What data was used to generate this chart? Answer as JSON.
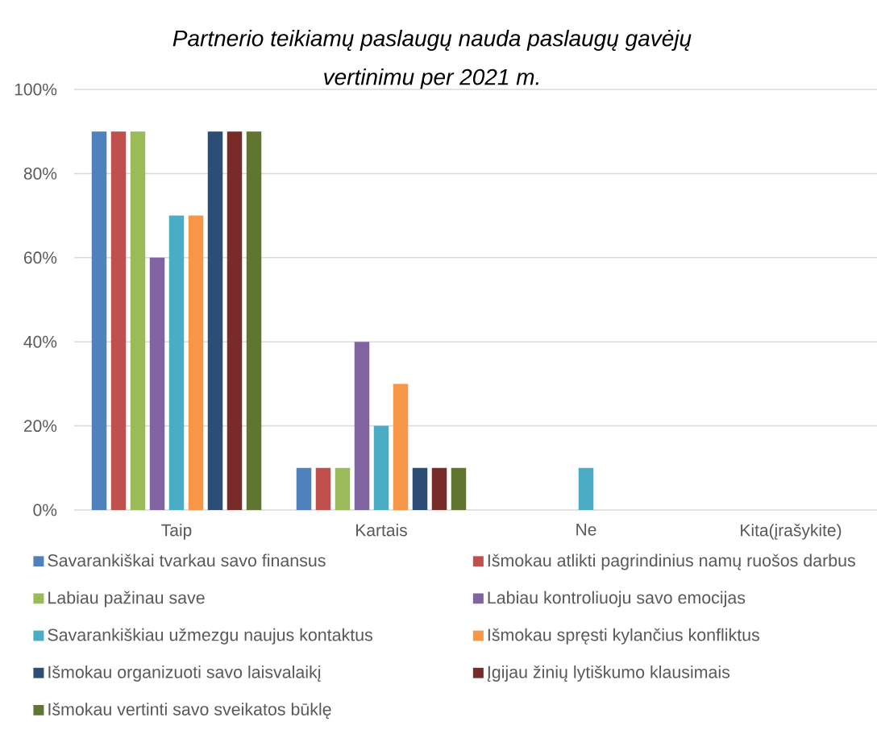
{
  "chart_data": {
    "type": "bar",
    "title": "Partnerio teikiamų paslaugų nauda paslaugų gavėjų vertinimu per 2021 m.",
    "categories": [
      "Taip",
      "Kartais",
      "Ne",
      "Kita(įrašykite)"
    ],
    "series": [
      {
        "name": "Savarankiškai tvarkau savo finansus",
        "color": "#4f81bd",
        "values": [
          90,
          10,
          0,
          0
        ]
      },
      {
        "name": "Išmokau atlikti pagrindinius namų ruošos darbus",
        "color": "#c0504d",
        "values": [
          90,
          10,
          0,
          0
        ]
      },
      {
        "name": "Labiau pažinau save",
        "color": "#9bbb59",
        "values": [
          90,
          10,
          0,
          0
        ]
      },
      {
        "name": "Labiau kontroliuoju savo emocijas",
        "color": "#8064a2",
        "values": [
          60,
          40,
          0,
          0
        ]
      },
      {
        "name": "Savarankiškiau užmezgu naujus kontaktus",
        "color": "#4bacc6",
        "values": [
          70,
          20,
          10,
          0
        ]
      },
      {
        "name": "Išmokau spręsti kylančius konfliktus",
        "color": "#f79646",
        "values": [
          70,
          30,
          0,
          0
        ]
      },
      {
        "name": "Išmokau organizuoti savo laisvalaikį",
        "color": "#2c4d75",
        "values": [
          90,
          10,
          0,
          0
        ]
      },
      {
        "name": "Įgijau žinių lytiškumo klausimais",
        "color": "#772c2a",
        "values": [
          90,
          10,
          0,
          0
        ]
      },
      {
        "name": "Išmokau vertinti savo sveikatos būklę",
        "color": "#5f7530",
        "values": [
          90,
          10,
          0,
          0
        ]
      }
    ],
    "ylim": [
      0,
      100
    ],
    "yticks": [
      {
        "value": 0,
        "label": "0%"
      },
      {
        "value": 20,
        "label": "20%"
      },
      {
        "value": 40,
        "label": "40%"
      },
      {
        "value": 60,
        "label": "60%"
      },
      {
        "value": 80,
        "label": "80%"
      },
      {
        "value": 100,
        "label": "100%"
      }
    ],
    "grid": "y",
    "legend": "bottom"
  }
}
